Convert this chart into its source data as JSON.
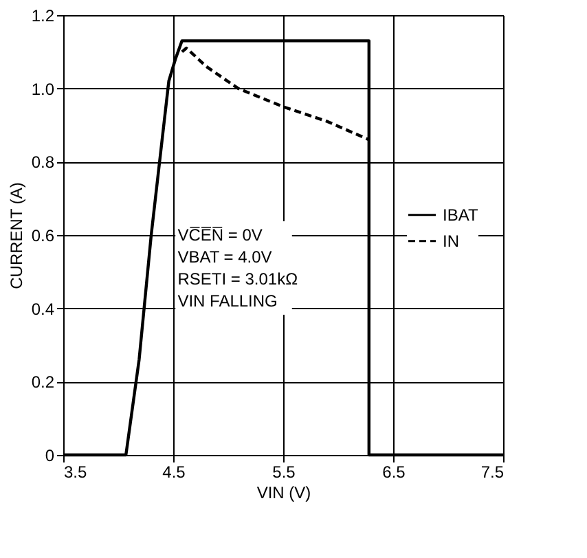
{
  "chart_data": {
    "type": "line",
    "xlabel": "VIN (V)",
    "ylabel": "CURRENT (A)",
    "xlim": [
      3.5,
      7.5
    ],
    "xticks": [
      3.5,
      4.5,
      5.5,
      6.5,
      7.5
    ],
    "ylim": [
      0,
      1.2
    ],
    "yticks": [
      {
        "value": 0,
        "label": "0"
      },
      0.2,
      0.4,
      0.6,
      0.8,
      {
        "value": 1,
        "label": "1.0"
      },
      1.2
    ],
    "grid": true,
    "legend": "right",
    "marker": "none",
    "annotations": [
      "VC̅E̅N̅ = 0V",
      "VBAT = 4.0V",
      "RSETI = 3.01kΩ",
      "VIN FALLING"
    ],
    "series": [
      {
        "name": "IBAT",
        "color": "#000000",
        "line_style": "solid",
        "x": [
          3.5,
          4.07,
          4.19,
          4.3,
          4.46,
          4.52,
          4.58,
          4.62,
          6.28,
          6.28,
          7.5
        ],
        "values": [
          0,
          0,
          0.26,
          0.6,
          1.02,
          1.08,
          1.13,
          1.13,
          1.13,
          0,
          0
        ]
      },
      {
        "name": "IN",
        "color": "#000000",
        "line_style": "dashed",
        "x": [
          4.58,
          4.62,
          4.8,
          5.09,
          5.5,
          5.9,
          6.28
        ],
        "values": [
          1.1,
          1.11,
          1.06,
          1.0,
          0.95,
          0.91,
          0.86
        ]
      }
    ]
  }
}
